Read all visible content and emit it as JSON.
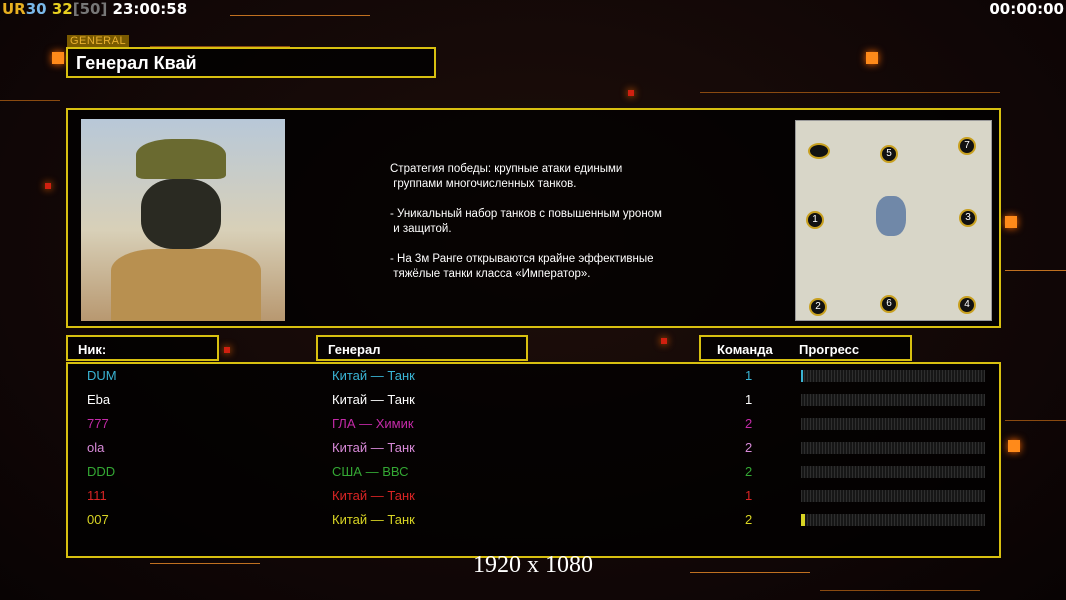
{
  "hud": {
    "ur": "UR",
    "v1": "30",
    "v2": "32",
    "cap": "[50]",
    "clock": "23:00:58",
    "timer": "00:00:00"
  },
  "general": {
    "tag": "GENERAL",
    "name": "Генерал Квай",
    "description": "Стратегия победы: крупные атаки едиными\n группами многочисленных танков.\n\n- Уникальный набор танков с повышенным уроном\n и защитой.\n\n- На 3м Ранге открываются крайне эффективные\n тяжёлые танки класса «Император»."
  },
  "map": {
    "slots": [
      "1",
      "2",
      "3",
      "4",
      "5",
      "6",
      "7"
    ]
  },
  "headers": {
    "nick": "Ник:",
    "general": "Генерал",
    "team": "Команда",
    "progress": "Прогресс"
  },
  "players": [
    {
      "nick": "DUM",
      "general": "Китай — Танк",
      "team": "1",
      "progress": 1,
      "color": "#3ab4d4"
    },
    {
      "nick": "Eba",
      "general": "Китай — Танк",
      "team": "1",
      "progress": 0,
      "color": "#ffffff"
    },
    {
      "nick": "777",
      "general": "ГЛА — Химик",
      "team": "2",
      "progress": 0,
      "color": "#c42aa8"
    },
    {
      "nick": "ola",
      "general": "Китай — Танк",
      "team": "2",
      "progress": 0,
      "color": "#d88ad8"
    },
    {
      "nick": "DDD",
      "general": "США — ВВС",
      "team": "2",
      "progress": 0,
      "color": "#34a834"
    },
    {
      "nick": "111",
      "general": "Китай — Танк",
      "team": "1",
      "progress": 0,
      "color": "#d82424"
    },
    {
      "nick": "007",
      "general": "Китай — Танк",
      "team": "2",
      "progress": 2,
      "color": "#d8d424"
    }
  ],
  "resolution": "1920 x 1080"
}
